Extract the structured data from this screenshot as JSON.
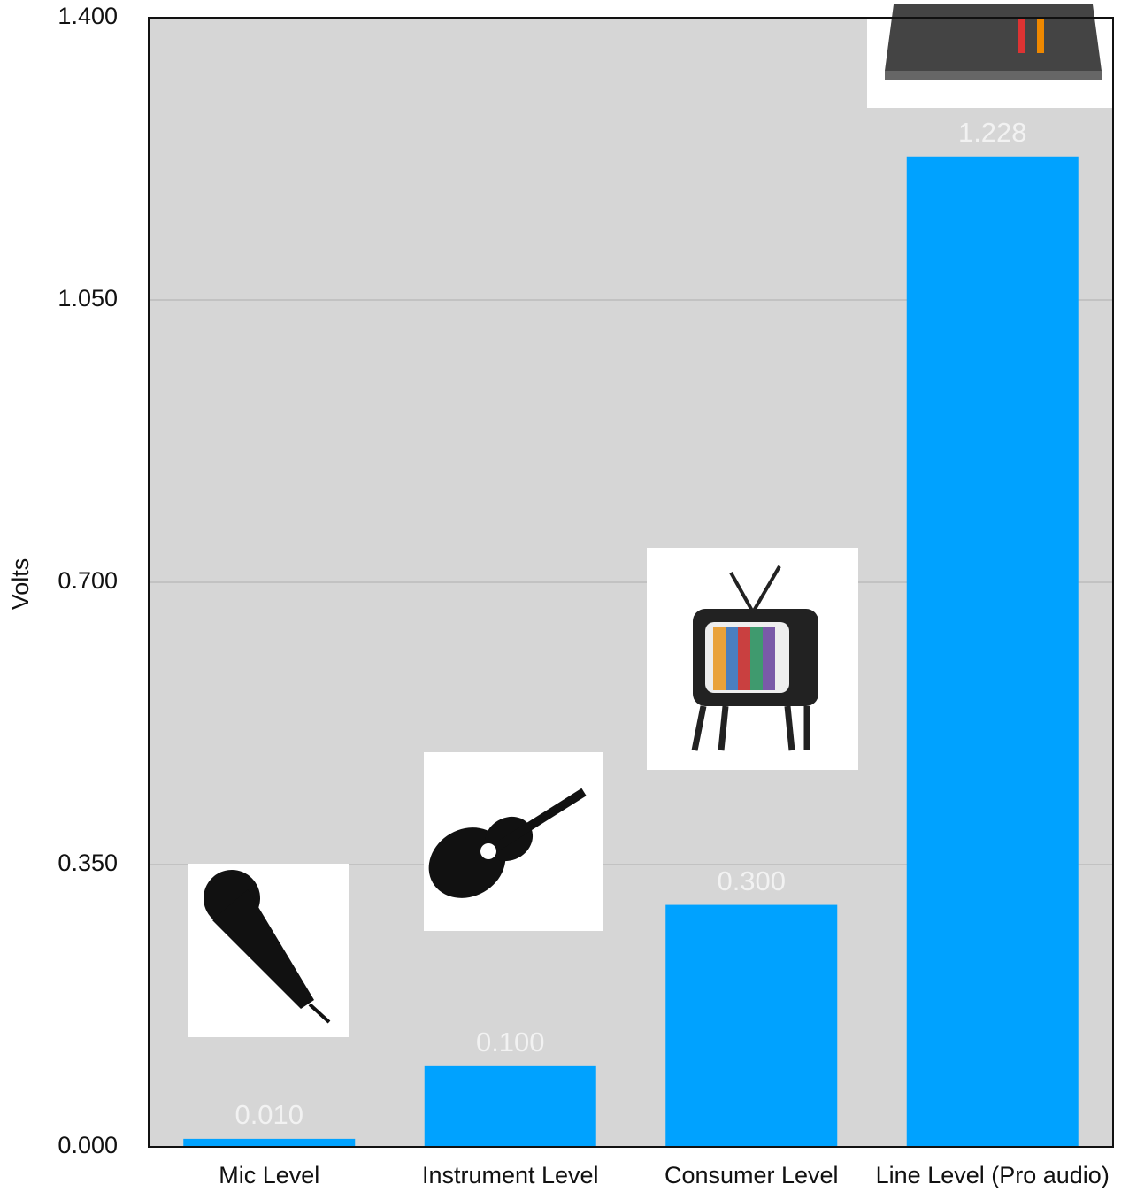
{
  "chart_data": {
    "type": "bar",
    "y_label": "Volts",
    "categories": [
      "Mic Level",
      "Instrument Level",
      "Consumer Level",
      "Line Level (Pro audio)"
    ],
    "values": [
      0.01,
      0.1,
      0.3,
      1.228
    ],
    "value_labels": [
      "0.010",
      "0.100",
      "0.300",
      "1.228"
    ],
    "color": "#00a2ff",
    "ylim": [
      0,
      1.4
    ],
    "yticks": [
      {
        "value": 0,
        "label": "0.000"
      },
      {
        "value": 0.35,
        "label": "0.350"
      },
      {
        "value": 0.7,
        "label": "0.700"
      },
      {
        "value": 1.05,
        "label": "1.050"
      },
      {
        "value": 1.4,
        "label": "1.400"
      }
    ],
    "grid": true
  }
}
